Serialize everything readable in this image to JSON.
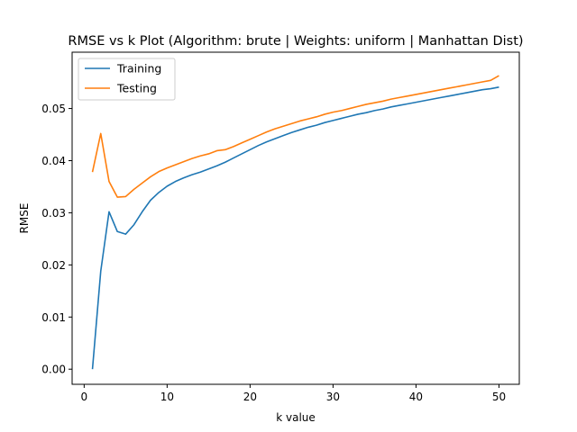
{
  "chart_data": {
    "type": "line",
    "title": "RMSE vs k Plot (Algorithm: brute | Weights: uniform | Manhattan Dist)",
    "xlabel": "k value",
    "ylabel": "RMSE",
    "xlim": [
      -1.45,
      52.45
    ],
    "ylim": [
      -0.0029,
      0.0608
    ],
    "xticks": [
      0,
      10,
      20,
      30,
      40,
      50
    ],
    "yticks": [
      0.0,
      0.01,
      0.02,
      0.03,
      0.04,
      0.05
    ],
    "ytick_labels": [
      "0.00",
      "0.01",
      "0.02",
      "0.03",
      "0.04",
      "0.05"
    ],
    "grid": false,
    "legend_position": "upper-left",
    "x": [
      1,
      2,
      3,
      4,
      5,
      6,
      7,
      8,
      9,
      10,
      11,
      12,
      13,
      14,
      15,
      16,
      17,
      18,
      19,
      20,
      21,
      22,
      23,
      24,
      25,
      26,
      27,
      28,
      29,
      30,
      31,
      32,
      33,
      34,
      35,
      36,
      37,
      38,
      39,
      40,
      41,
      42,
      43,
      44,
      45,
      46,
      47,
      48,
      49,
      50
    ],
    "series": [
      {
        "name": "Training",
        "color": "#1f77b4",
        "values": [
          0.0,
          0.0188,
          0.0302,
          0.0264,
          0.0259,
          0.0277,
          0.0302,
          0.0324,
          0.0339,
          0.0351,
          0.036,
          0.0367,
          0.0373,
          0.0378,
          0.0384,
          0.039,
          0.0397,
          0.0405,
          0.0413,
          0.0421,
          0.0429,
          0.0436,
          0.0442,
          0.0448,
          0.0454,
          0.0459,
          0.0464,
          0.0468,
          0.0473,
          0.0477,
          0.0481,
          0.0485,
          0.0489,
          0.0492,
          0.0496,
          0.0499,
          0.0503,
          0.0506,
          0.0509,
          0.0512,
          0.0515,
          0.0518,
          0.0521,
          0.0524,
          0.0527,
          0.053,
          0.0533,
          0.0536,
          0.0538,
          0.0541
        ]
      },
      {
        "name": "Testing",
        "color": "#ff7f0e",
        "values": [
          0.0378,
          0.0452,
          0.036,
          0.033,
          0.0331,
          0.0345,
          0.0357,
          0.0369,
          0.0379,
          0.0386,
          0.0392,
          0.0398,
          0.0404,
          0.0409,
          0.0413,
          0.0419,
          0.0421,
          0.0427,
          0.0434,
          0.0441,
          0.0448,
          0.0455,
          0.0461,
          0.0466,
          0.0471,
          0.0476,
          0.048,
          0.0484,
          0.0489,
          0.0493,
          0.0496,
          0.05,
          0.0504,
          0.0508,
          0.0511,
          0.0514,
          0.0518,
          0.0521,
          0.0524,
          0.0527,
          0.053,
          0.0533,
          0.0536,
          0.0539,
          0.0542,
          0.0545,
          0.0548,
          0.0551,
          0.0554,
          0.0563
        ]
      }
    ]
  }
}
